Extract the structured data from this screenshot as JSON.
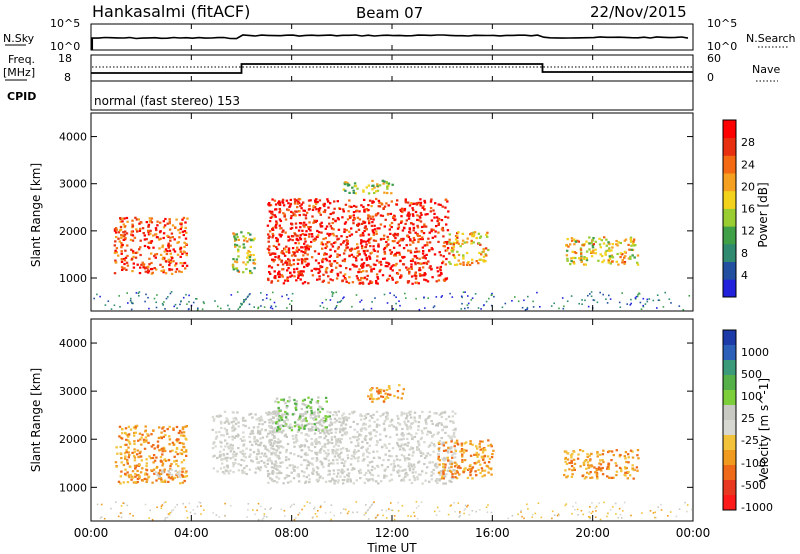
{
  "header": {
    "station": "Hankasalmi (fitACF)",
    "beam": "Beam 07",
    "date": "22/Nov/2015"
  },
  "top_panels": {
    "nsky_label": "N.Sky",
    "nsky_ticks": [
      "10^5",
      "10^0"
    ],
    "nsearch_label": "N.Search",
    "nsearch_ticks": [
      "10^5",
      "10^0"
    ],
    "freq_label_1": "Freq.",
    "freq_label_2": "[MHz]",
    "freq_ticks": [
      "18",
      "8"
    ],
    "nave_label": "Nave",
    "nave_ticks": [
      "60",
      "0"
    ],
    "cpid_label": "CPID",
    "cpid_text": "normal (fast stereo) 153"
  },
  "colors": {
    "power_scale": [
      "#2222dd",
      "#224fa0",
      "#2f8a70",
      "#3fa048",
      "#9acd32",
      "#f2d21a",
      "#f5a020",
      "#f46a12",
      "#e83010",
      "#ff0000"
    ],
    "velocity_scale": [
      "#1c3ba8",
      "#2b5fb8",
      "#3b9a7a",
      "#55b04a",
      "#7ccf3a",
      "#c9c9c3",
      "#d8d8d2",
      "#f2c33a",
      "#f09b20",
      "#ee6a18",
      "#e83820",
      "#ff1a1a"
    ]
  },
  "chart_data": [
    {
      "type": "heatmap",
      "name": "power",
      "ylabel": "Slant Range [km]",
      "yticks": [
        "1000",
        "2000",
        "3000",
        "4000"
      ],
      "ylim": [
        300,
        4500
      ],
      "xlim": [
        0,
        24
      ],
      "colorbar_label": "Power [dB]",
      "colorbar_ticks": [
        "4",
        "8",
        "12",
        "16",
        "20",
        "24",
        "28"
      ],
      "colorbar_range": [
        0,
        32
      ],
      "regions": [
        {
          "t0": 0.9,
          "t1": 3.8,
          "r0": 1100,
          "r1": 2300,
          "level": 0.75
        },
        {
          "t0": 5.6,
          "t1": 6.5,
          "r0": 1100,
          "r1": 2000,
          "level": 0.35
        },
        {
          "t0": 7.0,
          "t1": 14.2,
          "r0": 900,
          "r1": 2700,
          "level": 0.85
        },
        {
          "t0": 10.0,
          "t1": 12.0,
          "r0": 2800,
          "r1": 3100,
          "level": 0.3
        },
        {
          "t0": 14.2,
          "t1": 15.8,
          "r0": 1300,
          "r1": 2000,
          "level": 0.5
        },
        {
          "t0": 18.8,
          "t1": 21.8,
          "r0": 1300,
          "r1": 1900,
          "level": 0.45
        }
      ]
    },
    {
      "type": "heatmap",
      "name": "velocity",
      "ylabel": "Slant Range [km]",
      "yticks": [
        "1000",
        "2000",
        "3000",
        "4000"
      ],
      "ylim": [
        300,
        4500
      ],
      "xlabel": "Time UT",
      "xticks": [
        "00:00",
        "04:00",
        "08:00",
        "12:00",
        "16:00",
        "20:00",
        "00:00"
      ],
      "xlim": [
        0,
        24
      ],
      "colorbar_label": "Velocity [m s^-1]",
      "colorbar_ticks": [
        "1000",
        "500",
        "100",
        "25",
        "-25",
        "-100",
        "-500",
        "-1000"
      ],
      "regions": [
        {
          "t0": 0.9,
          "t1": 3.8,
          "r0": 1100,
          "r1": 2300,
          "kind": "orange"
        },
        {
          "t0": 2.5,
          "t1": 3.5,
          "r0": 1200,
          "r1": 1400,
          "kind": "grey"
        },
        {
          "t0": 4.8,
          "t1": 7.5,
          "r0": 1300,
          "r1": 2600,
          "kind": "grey"
        },
        {
          "t0": 7.0,
          "t1": 14.5,
          "r0": 1100,
          "r1": 2600,
          "kind": "grey"
        },
        {
          "t0": 7.2,
          "t1": 9.5,
          "r0": 2200,
          "r1": 2900,
          "kind": "mixed"
        },
        {
          "t0": 11.0,
          "t1": 12.5,
          "r0": 2800,
          "r1": 3150,
          "kind": "orange"
        },
        {
          "t0": 13.8,
          "t1": 16.0,
          "r0": 1200,
          "r1": 2000,
          "kind": "orange"
        },
        {
          "t0": 18.8,
          "t1": 21.8,
          "r0": 1200,
          "r1": 1800,
          "kind": "orange"
        }
      ]
    }
  ]
}
